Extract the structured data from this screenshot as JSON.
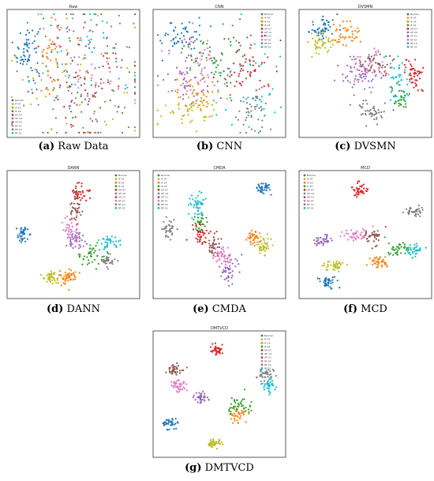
{
  "colors": {
    "Normal": "#1f77b4",
    "IF-07": "#bcbd22",
    "IF-14": "#ff7f0e",
    "IF-21": "#2ca02c",
    "OF-07": "#d62728",
    "OF-14": "#9467bd",
    "OF-21": "#8c564b",
    "RF-07": "#e377c2",
    "RF-14": "#7f7f7f",
    "RF-21": "#17becf"
  },
  "chart_data": [
    {
      "id": "a",
      "type": "scatter",
      "title": "Raw",
      "caption_letter": "(a)",
      "caption_text": "Raw Data",
      "legend": [
        "Normal",
        "IF-07",
        "IF-14",
        "IF-21",
        "OF-07",
        "OF-14",
        "OF-21",
        "RF-07",
        "RF-14",
        "RF-21"
      ],
      "legend_position": "bottom-left",
      "grid": false,
      "series": [
        {
          "name": "Normal",
          "clusters": [
            {
              "cx": 0.13,
              "cy": 0.69,
              "sx": 0.05,
              "sy": 0.12,
              "n": 60
            }
          ]
        },
        {
          "name": "IF-07",
          "clusters": [
            {
              "cx": 0.5,
              "cy": 0.5,
              "sx": 0.26,
              "sy": 0.3,
              "n": 40
            }
          ]
        },
        {
          "name": "IF-14",
          "clusters": [
            {
              "cx": 0.3,
              "cy": 0.58,
              "sx": 0.05,
              "sy": 0.18,
              "n": 36
            }
          ]
        },
        {
          "name": "IF-21",
          "clusters": [
            {
              "cx": 0.55,
              "cy": 0.5,
              "sx": 0.25,
              "sy": 0.3,
              "n": 40
            }
          ]
        },
        {
          "name": "OF-07",
          "clusters": [
            {
              "cx": 0.62,
              "cy": 0.35,
              "sx": 0.22,
              "sy": 0.25,
              "n": 40
            }
          ]
        },
        {
          "name": "OF-14",
          "clusters": [
            {
              "cx": 0.6,
              "cy": 0.5,
              "sx": 0.22,
              "sy": 0.28,
              "n": 40
            }
          ]
        },
        {
          "name": "OF-21",
          "clusters": [
            {
              "cx": 0.68,
              "cy": 0.55,
              "sx": 0.2,
              "sy": 0.28,
              "n": 40
            }
          ]
        },
        {
          "name": "RF-07",
          "clusters": [
            {
              "cx": 0.6,
              "cy": 0.6,
              "sx": 0.2,
              "sy": 0.18,
              "n": 40
            }
          ]
        },
        {
          "name": "RF-14",
          "clusters": [
            {
              "cx": 0.58,
              "cy": 0.45,
              "sx": 0.24,
              "sy": 0.3,
              "n": 40
            }
          ]
        },
        {
          "name": "RF-21",
          "clusters": [
            {
              "cx": 0.55,
              "cy": 0.55,
              "sx": 0.26,
              "sy": 0.3,
              "n": 36
            }
          ]
        }
      ]
    },
    {
      "id": "b",
      "type": "scatter",
      "title": "CNN",
      "caption_letter": "(b)",
      "caption_text": "CNN",
      "legend": [
        "Normal",
        "IF-07",
        "IF-14",
        "IF-21",
        "OF-07",
        "OF-14",
        "OF-21",
        "RF-07",
        "RF-14",
        "RF-21"
      ],
      "legend_position": "top-right",
      "grid": false,
      "series": [
        {
          "name": "Normal",
          "clusters": [
            {
              "cx": 0.2,
              "cy": 0.82,
              "sx": 0.09,
              "sy": 0.07,
              "n": 50
            }
          ]
        },
        {
          "name": "IF-07",
          "clusters": [
            {
              "cx": 0.28,
              "cy": 0.22,
              "sx": 0.1,
              "sy": 0.08,
              "n": 50
            }
          ]
        },
        {
          "name": "IF-14",
          "clusters": [
            {
              "cx": 0.3,
              "cy": 0.3,
              "sx": 0.12,
              "sy": 0.1,
              "n": 40
            }
          ]
        },
        {
          "name": "IF-21",
          "clusters": [
            {
              "cx": 0.42,
              "cy": 0.62,
              "sx": 0.1,
              "sy": 0.12,
              "n": 40
            }
          ]
        },
        {
          "name": "OF-07",
          "clusters": [
            {
              "cx": 0.72,
              "cy": 0.55,
              "sx": 0.12,
              "sy": 0.1,
              "n": 45
            }
          ]
        },
        {
          "name": "OF-14",
          "clusters": [
            {
              "cx": 0.22,
              "cy": 0.5,
              "sx": 0.12,
              "sy": 0.18,
              "n": 45
            }
          ]
        },
        {
          "name": "OF-21",
          "clusters": [
            {
              "cx": 0.6,
              "cy": 0.6,
              "sx": 0.16,
              "sy": 0.18,
              "n": 35
            }
          ]
        },
        {
          "name": "RF-07",
          "clusters": [
            {
              "cx": 0.3,
              "cy": 0.55,
              "sx": 0.1,
              "sy": 0.15,
              "n": 45
            }
          ]
        },
        {
          "name": "RF-14",
          "clusters": [
            {
              "cx": 0.78,
              "cy": 0.18,
              "sx": 0.07,
              "sy": 0.08,
              "n": 45
            }
          ]
        },
        {
          "name": "RF-21",
          "clusters": [
            {
              "cx": 0.75,
              "cy": 0.4,
              "sx": 0.16,
              "sy": 0.2,
              "n": 40
            }
          ]
        }
      ]
    },
    {
      "id": "c",
      "type": "scatter",
      "title": "DVSMN",
      "caption_letter": "(c)",
      "caption_text": "DVSMN",
      "legend": [
        "Normal",
        "IF-07",
        "IF-14",
        "IF-21",
        "OF-07",
        "OF-14",
        "OF-21",
        "RF-07",
        "RF-14",
        "RF-21"
      ],
      "legend_position": "top-right",
      "grid": false,
      "series": [
        {
          "name": "Normal",
          "clusters": [
            {
              "cx": 0.16,
              "cy": 0.88,
              "sx": 0.06,
              "sy": 0.05,
              "n": 50
            }
          ]
        },
        {
          "name": "IF-07",
          "clusters": [
            {
              "cx": 0.14,
              "cy": 0.75,
              "sx": 0.06,
              "sy": 0.05,
              "n": 45
            }
          ]
        },
        {
          "name": "IF-14",
          "clusters": [
            {
              "cx": 0.35,
              "cy": 0.82,
              "sx": 0.05,
              "sy": 0.07,
              "n": 45
            }
          ]
        },
        {
          "name": "IF-21",
          "clusters": [
            {
              "cx": 0.78,
              "cy": 0.3,
              "sx": 0.05,
              "sy": 0.05,
              "n": 35
            }
          ]
        },
        {
          "name": "OF-07",
          "clusters": [
            {
              "cx": 0.89,
              "cy": 0.48,
              "sx": 0.04,
              "sy": 0.07,
              "n": 50
            }
          ]
        },
        {
          "name": "OF-14",
          "clusters": [
            {
              "cx": 0.46,
              "cy": 0.5,
              "sx": 0.08,
              "sy": 0.08,
              "n": 60
            }
          ]
        },
        {
          "name": "OF-21",
          "clusters": [
            {
              "cx": 0.6,
              "cy": 0.58,
              "sx": 0.06,
              "sy": 0.06,
              "n": 40
            }
          ]
        },
        {
          "name": "RF-07",
          "clusters": [
            {
              "cx": 0.52,
              "cy": 0.55,
              "sx": 0.1,
              "sy": 0.08,
              "n": 40
            }
          ]
        },
        {
          "name": "RF-14",
          "clusters": [
            {
              "cx": 0.55,
              "cy": 0.18,
              "sx": 0.05,
              "sy": 0.05,
              "n": 45
            }
          ]
        },
        {
          "name": "RF-21",
          "clusters": [
            {
              "cx": 0.76,
              "cy": 0.44,
              "sx": 0.05,
              "sy": 0.1,
              "n": 40
            }
          ]
        }
      ]
    },
    {
      "id": "d",
      "type": "scatter",
      "title": "DANN",
      "caption_letter": "(d)",
      "caption_text": "DANN",
      "legend": [
        "Normal",
        "IF-07",
        "IF-14",
        "IF-21",
        "OF-07",
        "OF-14",
        "OF-21",
        "RF-07",
        "RF-14",
        "RF-21"
      ],
      "legend_position": "top-right",
      "grid": false,
      "series": [
        {
          "name": "Normal",
          "clusters": [
            {
              "cx": 0.08,
              "cy": 0.5,
              "sx": 0.025,
              "sy": 0.035,
              "n": 40
            }
          ]
        },
        {
          "name": "IF-07",
          "clusters": [
            {
              "cx": 0.33,
              "cy": 0.13,
              "sx": 0.04,
              "sy": 0.03,
              "n": 45
            }
          ]
        },
        {
          "name": "IF-14",
          "clusters": [
            {
              "cx": 0.46,
              "cy": 0.15,
              "sx": 0.035,
              "sy": 0.035,
              "n": 45
            }
          ]
        },
        {
          "name": "IF-21",
          "clusters": [
            {
              "cx": 0.65,
              "cy": 0.32,
              "sx": 0.05,
              "sy": 0.05,
              "n": 40
            }
          ]
        },
        {
          "name": "OF-07",
          "clusters": [
            {
              "cx": 0.55,
              "cy": 0.85,
              "sx": 0.035,
              "sy": 0.035,
              "n": 40
            }
          ]
        },
        {
          "name": "OF-14",
          "clusters": [
            {
              "cx": 0.52,
              "cy": 0.45,
              "sx": 0.04,
              "sy": 0.05,
              "n": 40
            }
          ]
        },
        {
          "name": "OF-21",
          "clusters": [
            {
              "cx": 0.52,
              "cy": 0.72,
              "sx": 0.025,
              "sy": 0.06,
              "n": 35
            }
          ]
        },
        {
          "name": "RF-07",
          "clusters": [
            {
              "cx": 0.48,
              "cy": 0.53,
              "sx": 0.035,
              "sy": 0.06,
              "n": 40
            }
          ]
        },
        {
          "name": "RF-14",
          "clusters": [
            {
              "cx": 0.78,
              "cy": 0.27,
              "sx": 0.035,
              "sy": 0.03,
              "n": 35
            }
          ]
        },
        {
          "name": "RF-21",
          "clusters": [
            {
              "cx": 0.8,
              "cy": 0.43,
              "sx": 0.04,
              "sy": 0.03,
              "n": 35
            }
          ]
        }
      ]
    },
    {
      "id": "e",
      "type": "scatter",
      "title": "CMDA",
      "caption_letter": "(e)",
      "caption_text": "CMDA",
      "legend": [
        "Normal",
        "IF-07",
        "IF-14",
        "IF-21",
        "OF-07",
        "OF-14",
        "OF-21",
        "RF-07",
        "RF-14",
        "RF-21"
      ],
      "legend_position": "top-left",
      "grid": false,
      "series": [
        {
          "name": "Normal",
          "clusters": [
            {
              "cx": 0.86,
              "cy": 0.9,
              "sx": 0.025,
              "sy": 0.03,
              "n": 40
            }
          ]
        },
        {
          "name": "IF-07",
          "clusters": [
            {
              "cx": 0.86,
              "cy": 0.4,
              "sx": 0.03,
              "sy": 0.04,
              "n": 40
            }
          ]
        },
        {
          "name": "IF-14",
          "clusters": [
            {
              "cx": 0.77,
              "cy": 0.48,
              "sx": 0.03,
              "sy": 0.035,
              "n": 40
            }
          ]
        },
        {
          "name": "IF-21",
          "clusters": [
            {
              "cx": 0.35,
              "cy": 0.6,
              "sx": 0.04,
              "sy": 0.06,
              "n": 35
            }
          ]
        },
        {
          "name": "OF-07",
          "clusters": [
            {
              "cx": 0.35,
              "cy": 0.5,
              "sx": 0.04,
              "sy": 0.05,
              "n": 40
            }
          ]
        },
        {
          "name": "OF-14",
          "clusters": [
            {
              "cx": 0.57,
              "cy": 0.2,
              "sx": 0.04,
              "sy": 0.07,
              "n": 45
            }
          ]
        },
        {
          "name": "OF-21",
          "clusters": [
            {
              "cx": 0.45,
              "cy": 0.4,
              "sx": 0.03,
              "sy": 0.04,
              "n": 35
            }
          ]
        },
        {
          "name": "RF-07",
          "clusters": [
            {
              "cx": 0.52,
              "cy": 0.32,
              "sx": 0.04,
              "sy": 0.05,
              "n": 40
            }
          ]
        },
        {
          "name": "RF-14",
          "clusters": [
            {
              "cx": 0.09,
              "cy": 0.55,
              "sx": 0.025,
              "sy": 0.04,
              "n": 35
            }
          ]
        },
        {
          "name": "RF-21",
          "clusters": [
            {
              "cx": 0.32,
              "cy": 0.75,
              "sx": 0.035,
              "sy": 0.06,
              "n": 40
            }
          ]
        }
      ]
    },
    {
      "id": "f",
      "type": "scatter",
      "title": "MCD",
      "caption_letter": "(f)",
      "caption_text": "MCD",
      "legend": [
        "Normal",
        "IF-07",
        "IF-14",
        "IF-21",
        "OF-07",
        "OF-14",
        "OF-21",
        "RF-07",
        "RF-14",
        "RF-21"
      ],
      "legend_position": "top-left",
      "grid": false,
      "series": [
        {
          "name": "Normal",
          "clusters": [
            {
              "cx": 0.19,
              "cy": 0.1,
              "sx": 0.04,
              "sy": 0.025,
              "n": 40
            }
          ]
        },
        {
          "name": "IF-07",
          "clusters": [
            {
              "cx": 0.24,
              "cy": 0.24,
              "sx": 0.045,
              "sy": 0.025,
              "n": 40
            }
          ]
        },
        {
          "name": "IF-14",
          "clusters": [
            {
              "cx": 0.6,
              "cy": 0.27,
              "sx": 0.04,
              "sy": 0.025,
              "n": 40
            }
          ]
        },
        {
          "name": "IF-21",
          "clusters": [
            {
              "cx": 0.77,
              "cy": 0.37,
              "sx": 0.05,
              "sy": 0.03,
              "n": 40
            }
          ]
        },
        {
          "name": "OF-07",
          "clusters": [
            {
              "cx": 0.45,
              "cy": 0.88,
              "sx": 0.03,
              "sy": 0.025,
              "n": 40
            }
          ]
        },
        {
          "name": "OF-14",
          "clusters": [
            {
              "cx": 0.15,
              "cy": 0.46,
              "sx": 0.04,
              "sy": 0.025,
              "n": 40
            }
          ]
        },
        {
          "name": "OF-21",
          "clusters": [
            {
              "cx": 0.56,
              "cy": 0.49,
              "sx": 0.04,
              "sy": 0.03,
              "n": 40
            }
          ]
        },
        {
          "name": "RF-07",
          "clusters": [
            {
              "cx": 0.42,
              "cy": 0.5,
              "sx": 0.05,
              "sy": 0.025,
              "n": 40
            }
          ]
        },
        {
          "name": "RF-14",
          "clusters": [
            {
              "cx": 0.9,
              "cy": 0.7,
              "sx": 0.035,
              "sy": 0.025,
              "n": 35
            }
          ]
        },
        {
          "name": "RF-21",
          "clusters": [
            {
              "cx": 0.89,
              "cy": 0.37,
              "sx": 0.04,
              "sy": 0.025,
              "n": 35
            }
          ]
        }
      ]
    },
    {
      "id": "g",
      "type": "scatter",
      "title": "DMTVCD",
      "caption_letter": "(g)",
      "caption_text": "DMTVCD",
      "legend": [
        "Normal",
        "IF-07",
        "IF-14",
        "IF-21",
        "OF-07",
        "OF-14",
        "OF-21",
        "RF-07",
        "RF-14",
        "RF-21"
      ],
      "legend_position": "top-right",
      "grid": false,
      "series": [
        {
          "name": "Normal",
          "clusters": [
            {
              "cx": 0.1,
              "cy": 0.25,
              "sx": 0.035,
              "sy": 0.025,
              "n": 40
            }
          ]
        },
        {
          "name": "IF-07",
          "clusters": [
            {
              "cx": 0.46,
              "cy": 0.08,
              "sx": 0.03,
              "sy": 0.02,
              "n": 40
            }
          ]
        },
        {
          "name": "IF-14",
          "clusters": [
            {
              "cx": 0.64,
              "cy": 0.33,
              "sx": 0.03,
              "sy": 0.025,
              "n": 40
            }
          ]
        },
        {
          "name": "IF-21",
          "clusters": [
            {
              "cx": 0.66,
              "cy": 0.4,
              "sx": 0.05,
              "sy": 0.035,
              "n": 40
            }
          ]
        },
        {
          "name": "OF-07",
          "clusters": [
            {
              "cx": 0.48,
              "cy": 0.88,
              "sx": 0.025,
              "sy": 0.025,
              "n": 40
            }
          ]
        },
        {
          "name": "OF-14",
          "clusters": [
            {
              "cx": 0.35,
              "cy": 0.47,
              "sx": 0.025,
              "sy": 0.025,
              "n": 40
            }
          ]
        },
        {
          "name": "OF-21",
          "clusters": [
            {
              "cx": 0.14,
              "cy": 0.71,
              "sx": 0.04,
              "sy": 0.025,
              "n": 40
            }
          ]
        },
        {
          "name": "RF-07",
          "clusters": [
            {
              "cx": 0.18,
              "cy": 0.57,
              "sx": 0.03,
              "sy": 0.025,
              "n": 40
            }
          ]
        },
        {
          "name": "RF-14",
          "clusters": [
            {
              "cx": 0.87,
              "cy": 0.67,
              "sx": 0.03,
              "sy": 0.025,
              "n": 35
            }
          ]
        },
        {
          "name": "RF-21",
          "clusters": [
            {
              "cx": 0.9,
              "cy": 0.58,
              "sx": 0.03,
              "sy": 0.03,
              "n": 35
            }
          ]
        }
      ]
    }
  ]
}
